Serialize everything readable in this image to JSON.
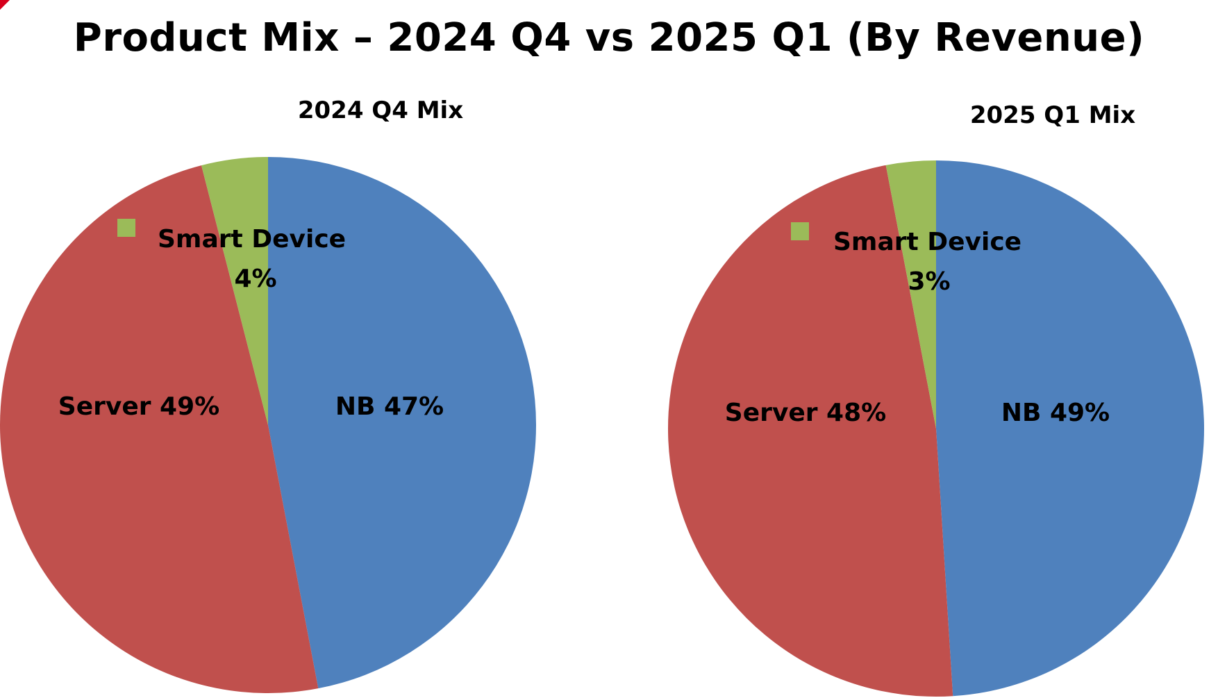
{
  "title": "Product Mix – 2024 Q4 vs 2025 Q1 (By Revenue)",
  "colors": {
    "nb": "#4f81bd",
    "server": "#c0504d",
    "smart_device": "#9bbb59",
    "corner_accent": "#d6001c"
  },
  "chart_data": [
    {
      "type": "pie",
      "title": "2024 Q4 Mix",
      "slices": [
        {
          "name": "NB",
          "value": 47,
          "label": "NB 47%",
          "color": "#4f81bd"
        },
        {
          "name": "Server",
          "value": 49,
          "label": "Server 49%",
          "color": "#c0504d"
        },
        {
          "name": "Smart Device",
          "value": 4,
          "label_line1": "Smart  Device",
          "label_line2": "4%",
          "color": "#9bbb59"
        }
      ]
    },
    {
      "type": "pie",
      "title": "2025 Q1 Mix",
      "slices": [
        {
          "name": "NB",
          "value": 49,
          "label": "NB 49%",
          "color": "#4f81bd"
        },
        {
          "name": "Server",
          "value": 48,
          "label": "Server 48%",
          "color": "#c0504d"
        },
        {
          "name": "Smart Device",
          "value": 3,
          "label_line1": "Smart  Device",
          "label_line2": "3%",
          "color": "#9bbb59"
        }
      ]
    }
  ]
}
